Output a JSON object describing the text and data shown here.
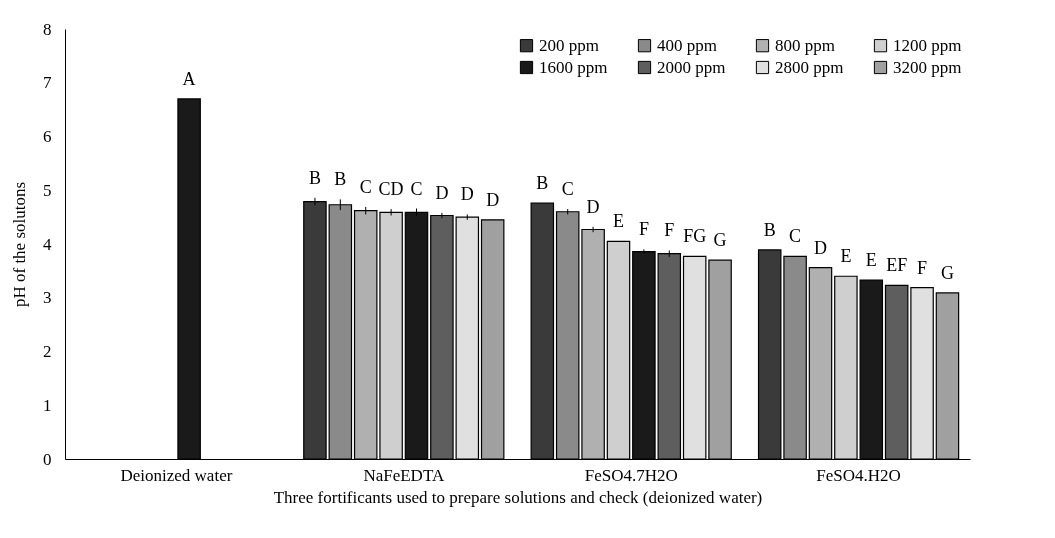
{
  "chart_data": {
    "type": "bar",
    "xlabel": "Three fortificants used to prepare solutions and check (deionized water)",
    "ylabel": "pH of the solutons",
    "categories": [
      "Deionized water",
      "NaFeEDTA",
      "FeSO4.7H2O",
      "FeSO4.H2O"
    ],
    "ylim": [
      0,
      8
    ],
    "yticks": [
      0,
      1,
      2,
      3,
      4,
      5,
      6,
      7,
      8
    ],
    "grid": false,
    "legend": "top right",
    "series": [
      {
        "name": "200 ppm",
        "color": "#3a3a3a",
        "values": [
          null,
          4.79,
          4.76,
          3.89
        ],
        "errors": [
          null,
          0.07,
          null,
          null
        ],
        "value_labels": [
          null,
          "B",
          "B",
          "B"
        ]
      },
      {
        "name": "400 ppm",
        "color": "#8a8a8a",
        "values": [
          null,
          4.73,
          4.6,
          3.77
        ],
        "errors": [
          null,
          0.1,
          0.05,
          null
        ],
        "value_labels": [
          null,
          "B",
          "C",
          "C"
        ]
      },
      {
        "name": "800 ppm",
        "color": "#b0b0b0",
        "values": [
          null,
          4.62,
          4.27,
          3.56
        ],
        "errors": [
          null,
          0.07,
          0.05,
          null
        ],
        "value_labels": [
          null,
          "C",
          "D",
          "D"
        ]
      },
      {
        "name": "1200 ppm",
        "color": "#cfcfcf",
        "values": [
          null,
          4.59,
          4.05,
          3.4
        ],
        "errors": [
          null,
          0.06,
          null,
          null
        ],
        "value_labels": [
          null,
          "CD",
          "E",
          "E"
        ]
      },
      {
        "name": "1600 ppm",
        "color": "#1a1a1a",
        "values": [
          6.7,
          4.59,
          3.86,
          3.33
        ],
        "errors": [
          null,
          0.07,
          0.04,
          null
        ],
        "value_labels": [
          "A",
          "C",
          "F",
          "E"
        ]
      },
      {
        "name": "2000 ppm",
        "color": "#5e5e5e",
        "values": [
          null,
          4.53,
          3.82,
          3.23
        ],
        "errors": [
          null,
          0.05,
          0.06,
          null
        ],
        "value_labels": [
          null,
          "D",
          "F",
          "EF"
        ]
      },
      {
        "name": "2800 ppm",
        "color": "#e0e0e0",
        "values": [
          null,
          4.5,
          3.77,
          3.19
        ],
        "errors": [
          null,
          0.05,
          null,
          null
        ],
        "value_labels": [
          null,
          "D",
          "FG",
          "F"
        ]
      },
      {
        "name": "3200 ppm",
        "color": "#a0a0a0",
        "values": [
          null,
          4.45,
          3.7,
          3.09
        ],
        "errors": [
          null,
          null,
          null,
          null
        ],
        "value_labels": [
          null,
          "D",
          "G",
          "G"
        ]
      }
    ]
  }
}
